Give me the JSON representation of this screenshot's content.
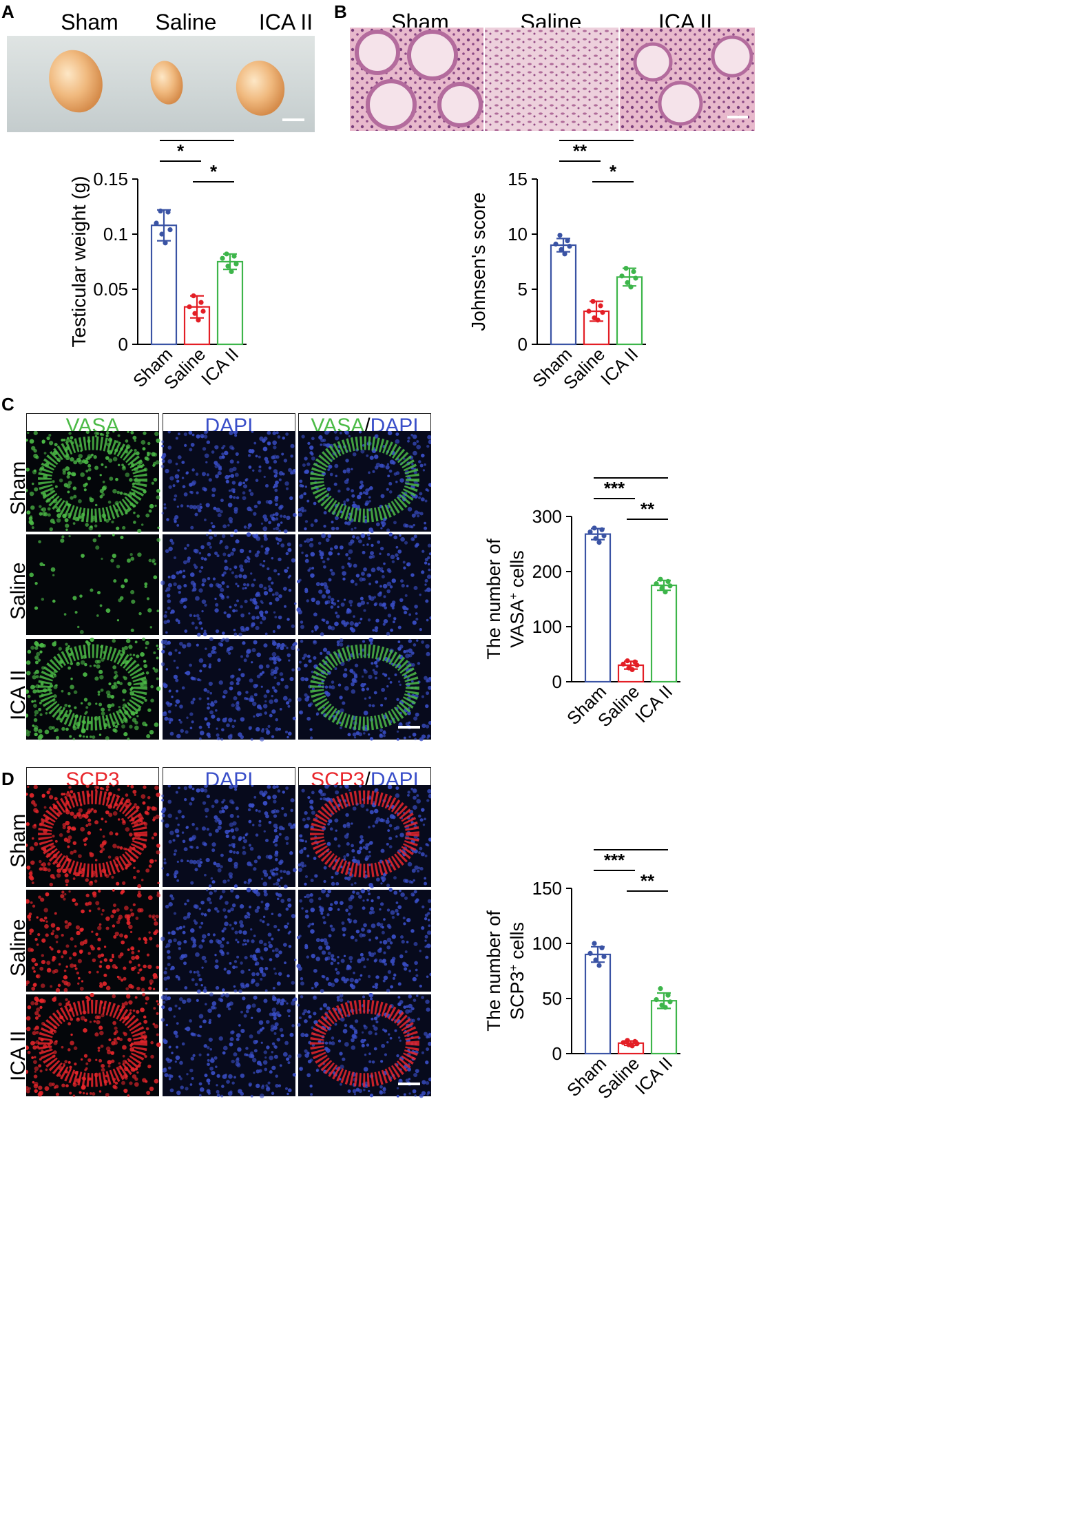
{
  "panels": {
    "a": {
      "letter": "A",
      "groups": [
        "Sham",
        "Saline",
        "ICA II"
      ]
    },
    "b": {
      "letter": "B",
      "groups": [
        "Sham",
        "Saline",
        "ICA II"
      ]
    },
    "c": {
      "letter": "C",
      "headers": [
        "VASA",
        "DAPI",
        "VASA",
        "/",
        "DAPI"
      ],
      "rows": [
        "Sham",
        "Saline",
        "ICA II"
      ]
    },
    "d": {
      "letter": "D",
      "headers": [
        "SCP3",
        "DAPI",
        "SCP3",
        "/",
        "DAPI"
      ],
      "rows": [
        "Sham",
        "Saline",
        "ICA II"
      ]
    }
  },
  "colors": {
    "sham": "#3a53a4",
    "saline": "#e31e25",
    "ica": "#3db54a",
    "vasa": "#4cbb47",
    "dapi": "#3a4fc9",
    "scp3": "#e8262b"
  },
  "chart_data": [
    {
      "id": "testicular-weight",
      "type": "bar",
      "categories": [
        "Sham",
        "Saline",
        "ICA II"
      ],
      "values": [
        0.108,
        0.034,
        0.075
      ],
      "errors": [
        0.014,
        0.01,
        0.007
      ],
      "points": [
        [
          0.121,
          0.12,
          0.11,
          0.104,
          0.1,
          0.092
        ],
        [
          0.044,
          0.038,
          0.034,
          0.03,
          0.028,
          0.022
        ],
        [
          0.082,
          0.08,
          0.078,
          0.073,
          0.071,
          0.066
        ]
      ],
      "ylabel": "Testicular weight (g)",
      "ylim": [
        0,
        0.15
      ],
      "yticks": [
        0,
        0.05,
        0.1,
        0.15
      ],
      "yticklabels": [
        "0",
        "0.05",
        "0.1",
        "0.15"
      ],
      "significance": [
        {
          "from": 0,
          "to": 2,
          "label": "*"
        },
        {
          "from": 0,
          "to": 1,
          "label": "*"
        },
        {
          "from": 1,
          "to": 2,
          "label": "*"
        }
      ]
    },
    {
      "id": "johnsen-score",
      "type": "bar",
      "categories": [
        "Sham",
        "Saline",
        "ICA II"
      ],
      "values": [
        9.0,
        3.0,
        6.1
      ],
      "errors": [
        0.6,
        0.9,
        0.8
      ],
      "points": [
        [
          9.9,
          9.4,
          9.1,
          8.9,
          8.6,
          8.2
        ],
        [
          3.9,
          3.5,
          3.0,
          2.9,
          2.4,
          2.2
        ],
        [
          6.9,
          6.6,
          6.2,
          6.0,
          5.6,
          5.2
        ]
      ],
      "ylabel": "Johnsen's score",
      "ylim": [
        0,
        15
      ],
      "yticks": [
        0,
        5,
        10,
        15
      ],
      "yticklabels": [
        "0",
        "5",
        "10",
        "15"
      ],
      "significance": [
        {
          "from": 0,
          "to": 2,
          "label": "*"
        },
        {
          "from": 0,
          "to": 1,
          "label": "**"
        },
        {
          "from": 1,
          "to": 2,
          "label": "*"
        }
      ]
    },
    {
      "id": "vasa-cells",
      "type": "bar",
      "categories": [
        "Sham",
        "Saline",
        "ICA II"
      ],
      "values": [
        268,
        30,
        175
      ],
      "errors": [
        10,
        7,
        9
      ],
      "points": [
        [
          279,
          276,
          272,
          265,
          260,
          253
        ],
        [
          38,
          36,
          32,
          30,
          25,
          22
        ],
        [
          186,
          182,
          178,
          174,
          170,
          163
        ]
      ],
      "ylabel_line1": "The number of",
      "ylabel_line2": "VASA",
      "ylabel_sup": "+",
      "ylabel_tail": " cells",
      "ylim": [
        0,
        300
      ],
      "yticks": [
        0,
        100,
        200,
        300
      ],
      "yticklabels": [
        "0",
        "100",
        "200",
        "300"
      ],
      "significance": [
        {
          "from": 0,
          "to": 2,
          "label": "**"
        },
        {
          "from": 0,
          "to": 1,
          "label": "***"
        },
        {
          "from": 1,
          "to": 2,
          "label": "**"
        }
      ]
    },
    {
      "id": "scp3-cells",
      "type": "bar",
      "categories": [
        "Sham",
        "Saline",
        "ICA II"
      ],
      "values": [
        90,
        9.5,
        48
      ],
      "errors": [
        7,
        2,
        7
      ],
      "points": [
        [
          100,
          96,
          91,
          88,
          85,
          80
        ],
        [
          12,
          11,
          10,
          9,
          8,
          7
        ],
        [
          59,
          53,
          49,
          47,
          44,
          42
        ]
      ],
      "ylabel_line1": "The number of",
      "ylabel_line2": "SCP3",
      "ylabel_sup": "+",
      "ylabel_tail": " cells",
      "ylim": [
        0,
        150
      ],
      "yticks": [
        0,
        50,
        100,
        150
      ],
      "yticklabels": [
        "0",
        "50",
        "100",
        "150"
      ],
      "significance": [
        {
          "from": 0,
          "to": 2,
          "label": "**"
        },
        {
          "from": 0,
          "to": 1,
          "label": "***"
        },
        {
          "from": 1,
          "to": 2,
          "label": "**"
        }
      ]
    }
  ]
}
